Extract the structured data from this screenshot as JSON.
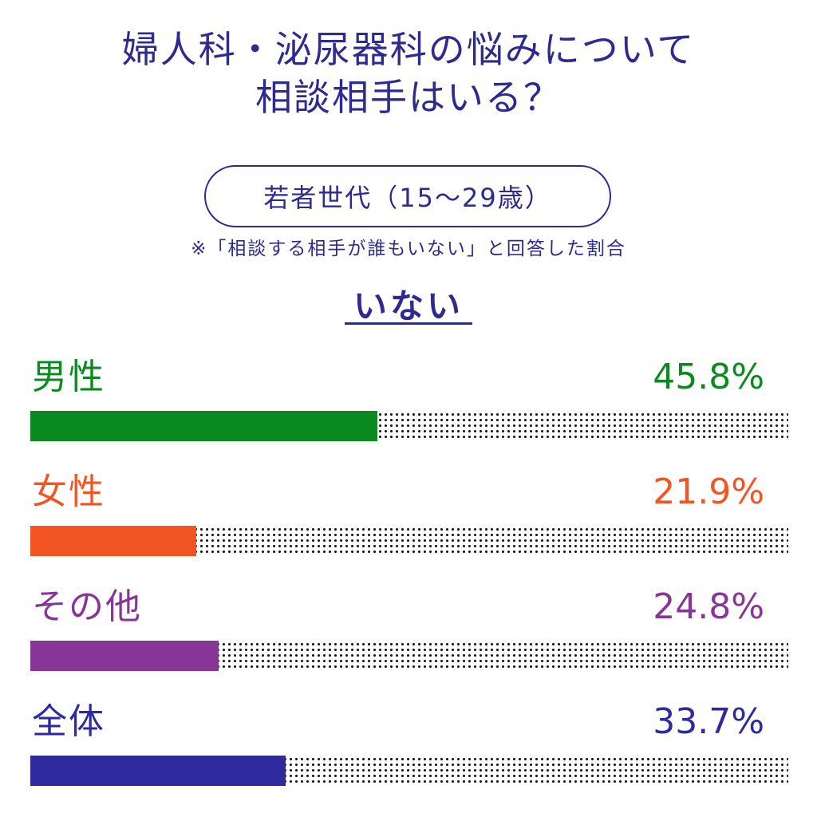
{
  "title_line1": "婦人科・泌尿器科の悩みについて",
  "title_line2": "相談相手はいる？",
  "subgroup": "若者世代（15～29歳）",
  "note": "※「相談する相手が誰もいない」と回答した割合",
  "heading": "いない",
  "chart_data": {
    "type": "bar",
    "orientation": "horizontal",
    "categories": [
      "男性",
      "女性",
      "その他",
      "全体"
    ],
    "values": [
      45.8,
      21.9,
      24.8,
      33.7
    ],
    "value_labels": [
      "45.8%",
      "21.9%",
      "24.8%",
      "33.7%"
    ],
    "colors": [
      "#0b8b1f",
      "#f35424",
      "#873697",
      "#2e2a9e"
    ],
    "xlim": [
      0,
      100
    ],
    "title": "",
    "xlabel": "",
    "ylabel": "",
    "grid": false
  }
}
